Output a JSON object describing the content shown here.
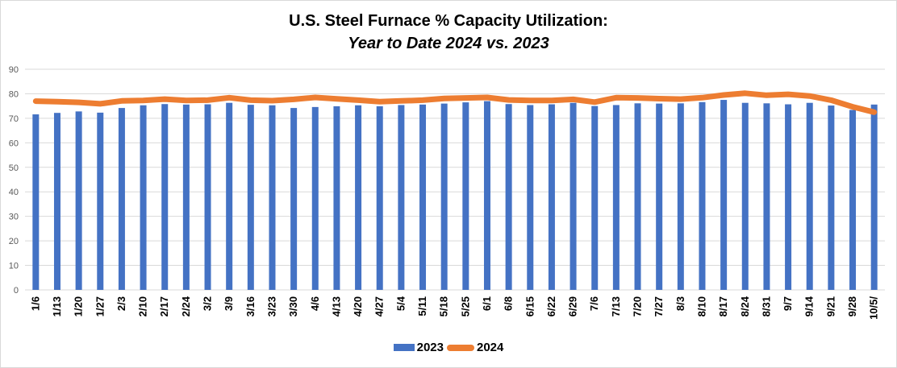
{
  "colors": {
    "bar_2023": "#4472C4",
    "line_2024": "#ED7D31",
    "grid": "#d9d9d9"
  },
  "chart_data": {
    "type": "bar",
    "title": "U.S. Steel Furnace % Capacity Utilization:",
    "subtitle": "Year to Date 2024 vs. 2023",
    "xlabel": "",
    "ylabel": "",
    "ylim": [
      0,
      90
    ],
    "yticks": [
      0,
      10,
      20,
      30,
      40,
      50,
      60,
      70,
      80,
      90
    ],
    "grid": true,
    "legend_position": "bottom",
    "categories": [
      "1/6",
      "1/13",
      "1/20",
      "1/27",
      "2/3",
      "2/10",
      "2/17",
      "2/24",
      "3/2",
      "3/9",
      "3/16",
      "3/23",
      "3/30",
      "4/6",
      "4/13",
      "4/20",
      "4/27",
      "5/4",
      "5/11",
      "5/18",
      "5/25",
      "6/1",
      "6/8",
      "6/15",
      "6/22",
      "6/29",
      "7/6",
      "7/13",
      "7/20",
      "7/27",
      "8/3",
      "8/10",
      "8/17",
      "8/24",
      "8/31",
      "9/7",
      "9/14",
      "9/21",
      "9/28",
      "10/5/"
    ],
    "series": [
      {
        "name": "2023",
        "type": "bar",
        "values": [
          71.6,
          72.2,
          72.8,
          72.3,
          74.2,
          75.3,
          75.8,
          75.6,
          75.7,
          76.3,
          75.5,
          75.3,
          74.2,
          74.6,
          74.9,
          75.3,
          74.9,
          75.4,
          75.6,
          76.0,
          76.5,
          77.0,
          75.8,
          75.4,
          75.7,
          76.3,
          75.0,
          75.4,
          76.1,
          76.0,
          76.1,
          76.6,
          77.5,
          76.3,
          76.1,
          75.7,
          76.3,
          75.2,
          73.4,
          75.6
        ]
      },
      {
        "name": "2024",
        "type": "line",
        "values": [
          77.0,
          76.8,
          76.5,
          75.9,
          77.1,
          77.3,
          77.8,
          77.3,
          77.4,
          78.4,
          77.4,
          77.2,
          77.7,
          78.5,
          77.9,
          77.4,
          76.8,
          77.1,
          77.4,
          78.1,
          78.3,
          78.5,
          77.5,
          77.3,
          77.3,
          77.7,
          76.6,
          78.4,
          78.3,
          78.0,
          77.8,
          78.4,
          79.5,
          80.2,
          79.4,
          79.8,
          79.1,
          77.4,
          74.7,
          72.5
        ]
      }
    ]
  }
}
